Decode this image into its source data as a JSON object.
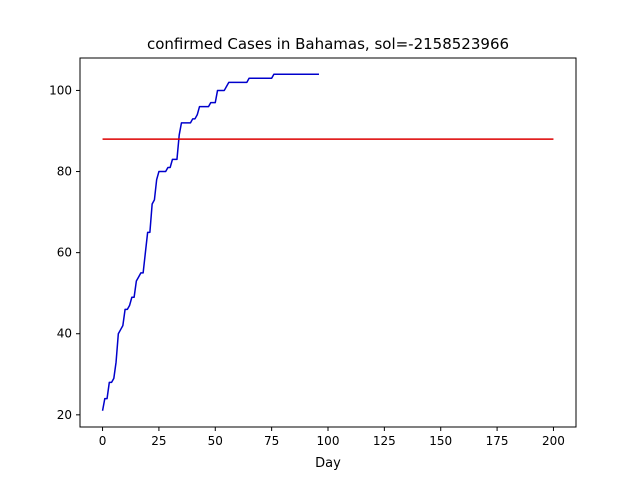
{
  "chart_data": {
    "type": "line",
    "title": "confirmed Cases in Bahamas, sol=-2158523966",
    "xlabel": "Day",
    "ylabel": "",
    "xlim": [
      -10,
      210
    ],
    "ylim": [
      17,
      108
    ],
    "xticks": [
      0,
      25,
      50,
      75,
      100,
      125,
      150,
      175,
      200
    ],
    "yticks": [
      20,
      40,
      60,
      80,
      100
    ],
    "grid": false,
    "series": [
      {
        "color": "#0000cc",
        "x": [
          0,
          1,
          2,
          3,
          4,
          5,
          6,
          7,
          8,
          9,
          10,
          11,
          12,
          13,
          14,
          15,
          16,
          17,
          18,
          19,
          20,
          21,
          22,
          23,
          24,
          25,
          26,
          27,
          28,
          29,
          30,
          31,
          32,
          33,
          34,
          35,
          36,
          37,
          38,
          39,
          40,
          41,
          42,
          43,
          44,
          45,
          46,
          47,
          48,
          49,
          50,
          51,
          52,
          53,
          54,
          55,
          56,
          57,
          58,
          59,
          60,
          61,
          62,
          63,
          64,
          65,
          66,
          67,
          68,
          69,
          70,
          71,
          72,
          73,
          74,
          75,
          76,
          77,
          78,
          79,
          80,
          81,
          82,
          83,
          84,
          85,
          86,
          87,
          88,
          89,
          90,
          91,
          92,
          93,
          94,
          95,
          96
        ],
        "y": [
          21,
          24,
          24,
          28,
          28,
          29,
          33,
          40,
          41,
          42,
          46,
          46,
          47,
          49,
          49,
          53,
          54,
          55,
          55,
          60,
          65,
          65,
          72,
          73,
          78,
          80,
          80,
          80,
          80,
          81,
          81,
          83,
          83,
          83,
          89,
          92,
          92,
          92,
          92,
          92,
          93,
          93,
          94,
          96,
          96,
          96,
          96,
          96,
          97,
          97,
          97,
          100,
          100,
          100,
          100,
          101,
          102,
          102,
          102,
          102,
          102,
          102,
          102,
          102,
          102,
          103,
          103,
          103,
          103,
          103,
          103,
          103,
          103,
          103,
          103,
          103,
          104,
          104,
          104,
          104,
          104,
          104,
          104,
          104,
          104,
          104,
          104,
          104,
          104,
          104,
          104,
          104,
          104,
          104,
          104,
          104,
          104
        ]
      },
      {
        "color": "#dd0000",
        "x": [
          0,
          200
        ],
        "y": [
          88,
          88
        ]
      }
    ]
  }
}
